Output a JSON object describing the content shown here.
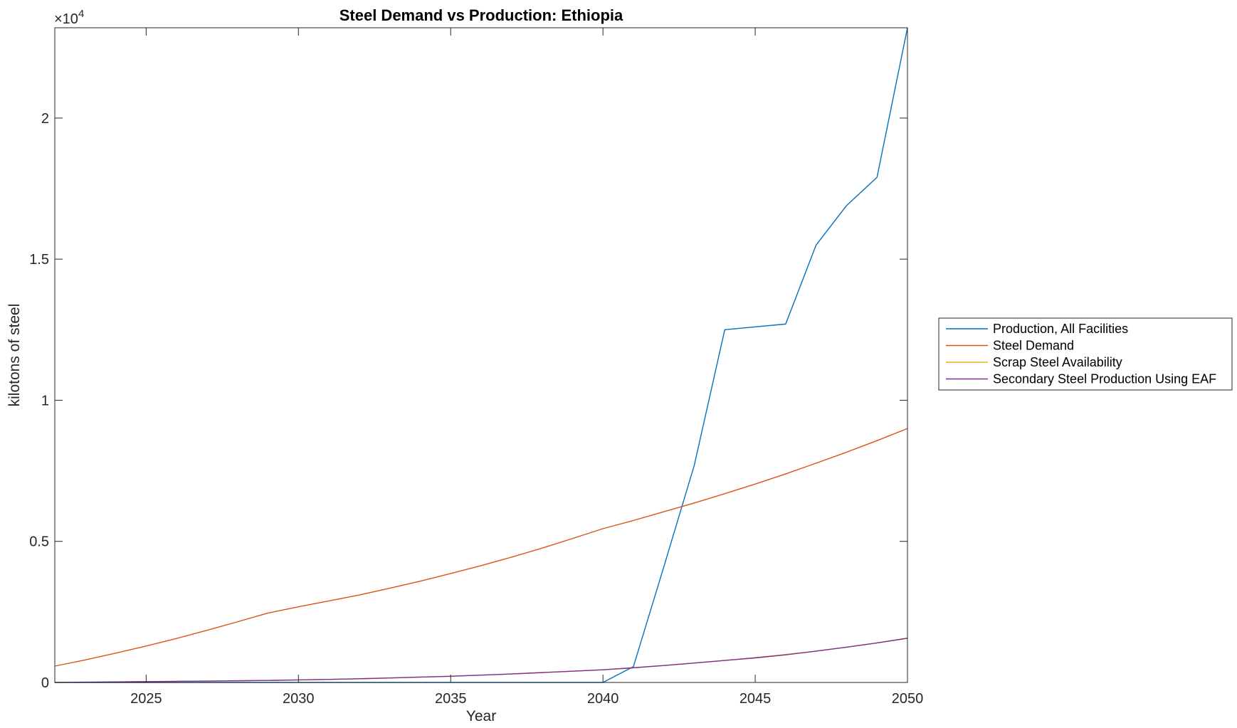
{
  "chart_data": {
    "type": "line",
    "title": "Steel Demand vs Production: Ethiopia",
    "xlabel": "Year",
    "ylabel": "kilotons of steel",
    "exponent_label": "×10",
    "exponent_power": "4",
    "xlim": [
      2022,
      2050
    ],
    "ylim": [
      0,
      23200
    ],
    "xticks": [
      2025,
      2030,
      2035,
      2040,
      2045,
      2050
    ],
    "xtick_labels": [
      "2025",
      "2030",
      "2035",
      "2040",
      "2045",
      "2050"
    ],
    "yticks": [
      0,
      5000,
      10000,
      15000,
      20000
    ],
    "ytick_labels": [
      "0",
      "0.5",
      "1",
      "1.5",
      "2"
    ],
    "grid": false,
    "legend_position": "outside-right",
    "x": [
      2022,
      2023,
      2024,
      2025,
      2026,
      2027,
      2028,
      2029,
      2030,
      2031,
      2032,
      2033,
      2034,
      2035,
      2036,
      2037,
      2038,
      2039,
      2040,
      2041,
      2042,
      2043,
      2044,
      2045,
      2046,
      2047,
      2048,
      2049,
      2050
    ],
    "series": [
      {
        "name": "Production, All Facilities",
        "color": "#0072BD",
        "values": [
          0,
          0,
          0,
          0,
          0,
          0,
          0,
          0,
          0,
          0,
          0,
          0,
          0,
          0,
          0,
          0,
          0,
          0,
          0,
          560,
          4100,
          7700,
          12500,
          12600,
          12700,
          15500,
          16900,
          17900,
          23200
        ]
      },
      {
        "name": "Steel Demand",
        "color": "#D95319",
        "values": [
          580,
          800,
          1040,
          1290,
          1560,
          1850,
          2150,
          2460,
          2680,
          2890,
          3100,
          3340,
          3590,
          3860,
          4140,
          4440,
          4760,
          5100,
          5450,
          5740,
          6050,
          6360,
          6690,
          7030,
          7390,
          7770,
          8160,
          8570,
          9000
        ]
      },
      {
        "name": "Scrap Steel Availability",
        "color": "#EDB120",
        "values": [
          0,
          10,
          20,
          30,
          40,
          50,
          60,
          70,
          90,
          110,
          130,
          160,
          190,
          220,
          260,
          300,
          350,
          400,
          450,
          520,
          600,
          690,
          780,
          880,
          990,
          1110,
          1250,
          1400,
          1560
        ]
      },
      {
        "name": "Secondary Steel Production Using EAF",
        "color": "#7E2F8E",
        "values": [
          0,
          10,
          20,
          30,
          40,
          50,
          60,
          70,
          90,
          110,
          130,
          160,
          190,
          220,
          260,
          300,
          350,
          400,
          450,
          520,
          600,
          690,
          780,
          870,
          980,
          1110,
          1250,
          1400,
          1570
        ]
      }
    ]
  }
}
